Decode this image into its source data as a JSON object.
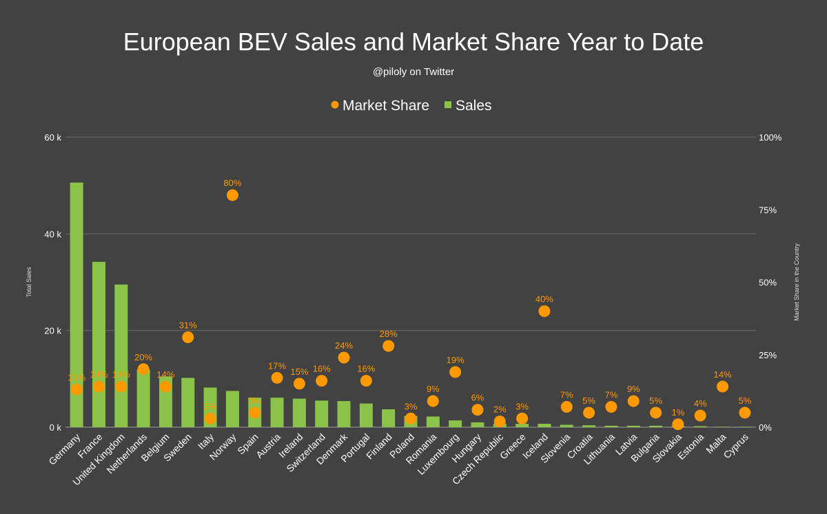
{
  "chart_data": {
    "type": "bar",
    "title": "European BEV Sales and Market Share Year to Date",
    "subtitle": "@piloly on Twitter",
    "ylabel": "Total Sales",
    "y2label": "Market Share in the Country",
    "ylim": [
      0,
      60000
    ],
    "y2lim": [
      0,
      100
    ],
    "yticks": [
      "0 k",
      "20 k",
      "40 k",
      "60 k"
    ],
    "y2ticks": [
      "0%",
      "25%",
      "50%",
      "75%",
      "100%"
    ],
    "legend_position": "top-center",
    "grid": true,
    "legend": [
      {
        "name": "Market Share",
        "marker": "circle",
        "color": "#FF9900"
      },
      {
        "name": "Sales",
        "marker": "square",
        "color": "#8BC34A"
      }
    ],
    "categories": [
      "Germany",
      "France",
      "United Kingdom",
      "Netherlands",
      "Belgium",
      "Sweden",
      "Italy",
      "Norway",
      "Spain",
      "Austria",
      "Ireland",
      "Switzerland",
      "Denmark",
      "Portugal",
      "Finland",
      "Poland",
      "Romania",
      "Luxembourg",
      "Hungary",
      "Czech Republic",
      "Greece",
      "Iceland",
      "Slovenia",
      "Croatia",
      "Lithuania",
      "Latvia",
      "Bulgaria",
      "Slovakia",
      "Estonia",
      "Malta",
      "Cyprus"
    ],
    "series": [
      {
        "name": "Sales",
        "kind": "bar",
        "axis": "left",
        "color": "#8BC34A",
        "values": [
          50600,
          34200,
          29500,
          11900,
          10500,
          10200,
          8200,
          7500,
          6100,
          6100,
          5900,
          5500,
          5400,
          4900,
          3700,
          2300,
          2200,
          1400,
          1000,
          700,
          700,
          700,
          500,
          400,
          300,
          300,
          300,
          250,
          200,
          100,
          100
        ]
      },
      {
        "name": "Market Share",
        "kind": "scatter",
        "axis": "right",
        "color": "#FF9900",
        "values": [
          13,
          14,
          14,
          20,
          14,
          31,
          3,
          80,
          5,
          17,
          15,
          16,
          24,
          16,
          28,
          3,
          9,
          19,
          6,
          2,
          3,
          40,
          7,
          5,
          7,
          9,
          5,
          1,
          4,
          14,
          5
        ],
        "labels": [
          "13%",
          "14%",
          "14%",
          "20%",
          "14%",
          "31%",
          "3%",
          "80%",
          "5%",
          "17%",
          "15%",
          "16%",
          "24%",
          "16%",
          "28%",
          "3%",
          "9%",
          "19%",
          "6%",
          "2%",
          "3%",
          "40%",
          "7%",
          "5%",
          "7%",
          "9%",
          "5%",
          "1%",
          "4%",
          "14%",
          "5%"
        ]
      }
    ]
  }
}
